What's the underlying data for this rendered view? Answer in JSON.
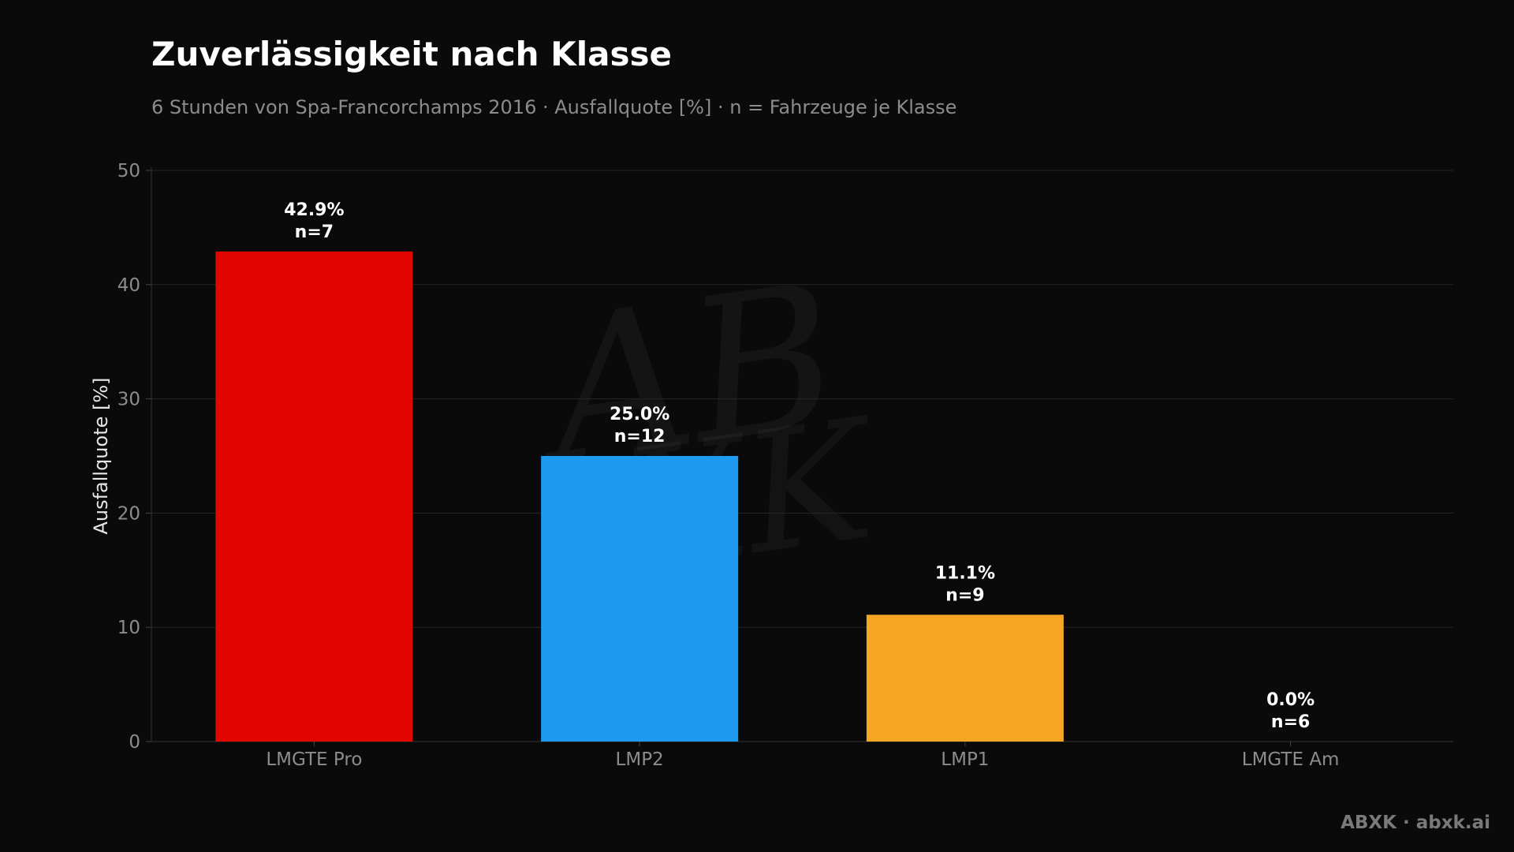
{
  "chart_data": {
    "type": "bar",
    "title": "Zuverlässigkeit nach Klasse",
    "subtitle": "6 Stunden von Spa-Francorchamps 2016 · Ausfallquote [%] · n = Fahrzeuge je Klasse",
    "xlabel": "",
    "ylabel": "Ausfallquote [%]",
    "ylim": [
      0,
      53.6
    ],
    "yticks": [
      0,
      10,
      20,
      30,
      40,
      50
    ],
    "grid": true,
    "categories": [
      "LMGTE Pro",
      "LMP2",
      "LMP1",
      "LMGTE Am"
    ],
    "values": [
      42.9,
      25.0,
      11.1,
      0.0
    ],
    "value_labels": [
      "42.9%",
      "25.0%",
      "11.1%",
      "0.0%"
    ],
    "n_labels": [
      "n=7",
      "n=12",
      "n=9",
      "n=6"
    ],
    "colors": [
      "#e10600",
      "#1e9bf0",
      "#f5a623",
      "#777777"
    ]
  },
  "watermark": "ABXK",
  "footer": {
    "credit": "ABXK · abxk.ai"
  }
}
